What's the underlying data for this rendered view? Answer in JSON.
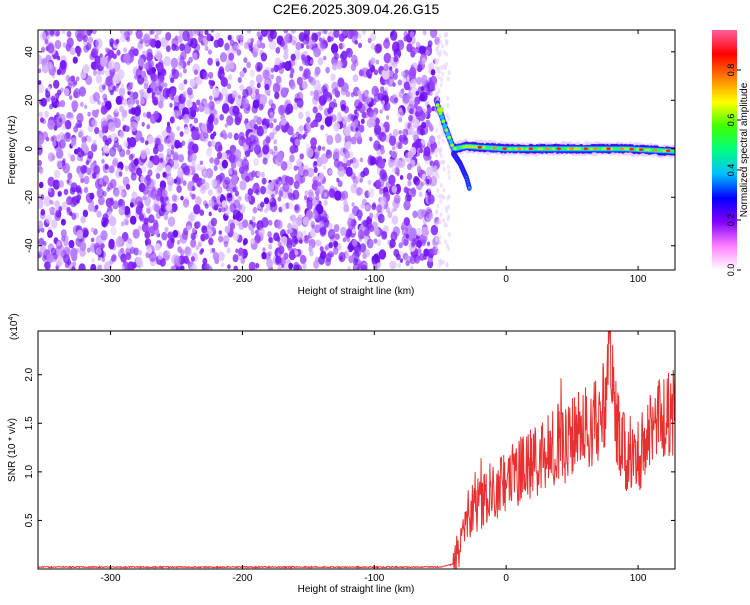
{
  "figure_title": "C2E6.2025.309.04.26.G15",
  "chart_data": [
    {
      "type": "heatmap",
      "title": "",
      "xlabel": "Height of straight line (km)",
      "ylabel": "Frequency (Hz)",
      "xlim": [
        -355,
        128
      ],
      "ylim": [
        -50,
        49
      ],
      "xticks": [
        "-300",
        "-200",
        "-100",
        "0",
        "100"
      ],
      "xtick_values": [
        -300,
        -200,
        -100,
        0,
        100
      ],
      "yticks": [
        "-40",
        "-20",
        "0",
        "20",
        "40"
      ],
      "ytick_values": [
        -40,
        -20,
        0,
        20,
        40
      ],
      "noise_region_x": [
        -355,
        -52
      ],
      "signal_trace": [
        {
          "x": -52,
          "y": 18
        },
        {
          "x": -48,
          "y": 12
        },
        {
          "x": -45,
          "y": 7
        },
        {
          "x": -42,
          "y": 3
        },
        {
          "x": -40,
          "y": 0
        },
        {
          "x": -30,
          "y": 1
        },
        {
          "x": 0,
          "y": 0
        },
        {
          "x": 30,
          "y": 0
        },
        {
          "x": 60,
          "y": 0
        },
        {
          "x": 90,
          "y": 0
        },
        {
          "x": 128,
          "y": -1
        }
      ],
      "secondary_branch": [
        {
          "x": -40,
          "y": -2
        },
        {
          "x": -35,
          "y": -6
        },
        {
          "x": -30,
          "y": -12
        },
        {
          "x": -28,
          "y": -16
        }
      ],
      "colorbar": {
        "label": "Normalized spectral amplitude",
        "ticks": [
          "0.0",
          "0.2",
          "0.4",
          "0.6",
          "0.8"
        ],
        "tick_values": [
          0.0,
          0.2,
          0.4,
          0.6,
          0.8
        ],
        "range": [
          0,
          0.96
        ],
        "colors": [
          "#ffffff",
          "#ff80ff",
          "#8000ff",
          "#0000ff",
          "#00c0ff",
          "#00ff80",
          "#40ff00",
          "#ffff00",
          "#ff8000",
          "#ff0000",
          "#ff60a0"
        ]
      }
    },
    {
      "type": "line",
      "title": "",
      "xlabel": "Height of straight line (km)",
      "ylabel": "SNR (10 * v/v)",
      "scale_label": "(x10",
      "scale_exponent": "4",
      "scale_close": ")",
      "xlim": [
        -355,
        128
      ],
      "ylim": [
        0,
        2.45
      ],
      "xticks": [
        "-300",
        "-200",
        "-100",
        "0",
        "100"
      ],
      "xtick_values": [
        -300,
        -200,
        -100,
        0,
        100
      ],
      "yticks": [
        "0.5",
        "1.0",
        "1.5",
        "2.0"
      ],
      "ytick_values": [
        0.5,
        1.0,
        1.5,
        2.0
      ],
      "line_color": "#e83030",
      "series": [
        {
          "x": [
            -355,
            -300,
            -200,
            -100,
            -50,
            -40,
            -35,
            -30,
            -25,
            -20,
            -15,
            -10,
            -5,
            0,
            5,
            10,
            15,
            20,
            25,
            30,
            35,
            40,
            45,
            50,
            55,
            60,
            65,
            70,
            75,
            78,
            82,
            85,
            90,
            95,
            100,
            105,
            110,
            115,
            120,
            125,
            128
          ],
          "values": [
            0.02,
            0.02,
            0.02,
            0.02,
            0.02,
            0.05,
            0.25,
            0.5,
            0.7,
            0.65,
            0.8,
            0.75,
            0.85,
            0.9,
            0.95,
            1.0,
            1.05,
            1.1,
            1.15,
            1.2,
            1.25,
            1.3,
            1.25,
            1.35,
            1.4,
            1.45,
            1.5,
            1.55,
            1.75,
            2.35,
            1.6,
            1.4,
            1.2,
            1.1,
            1.15,
            1.3,
            1.45,
            1.5,
            1.55,
            1.6,
            1.6
          ]
        }
      ]
    }
  ]
}
